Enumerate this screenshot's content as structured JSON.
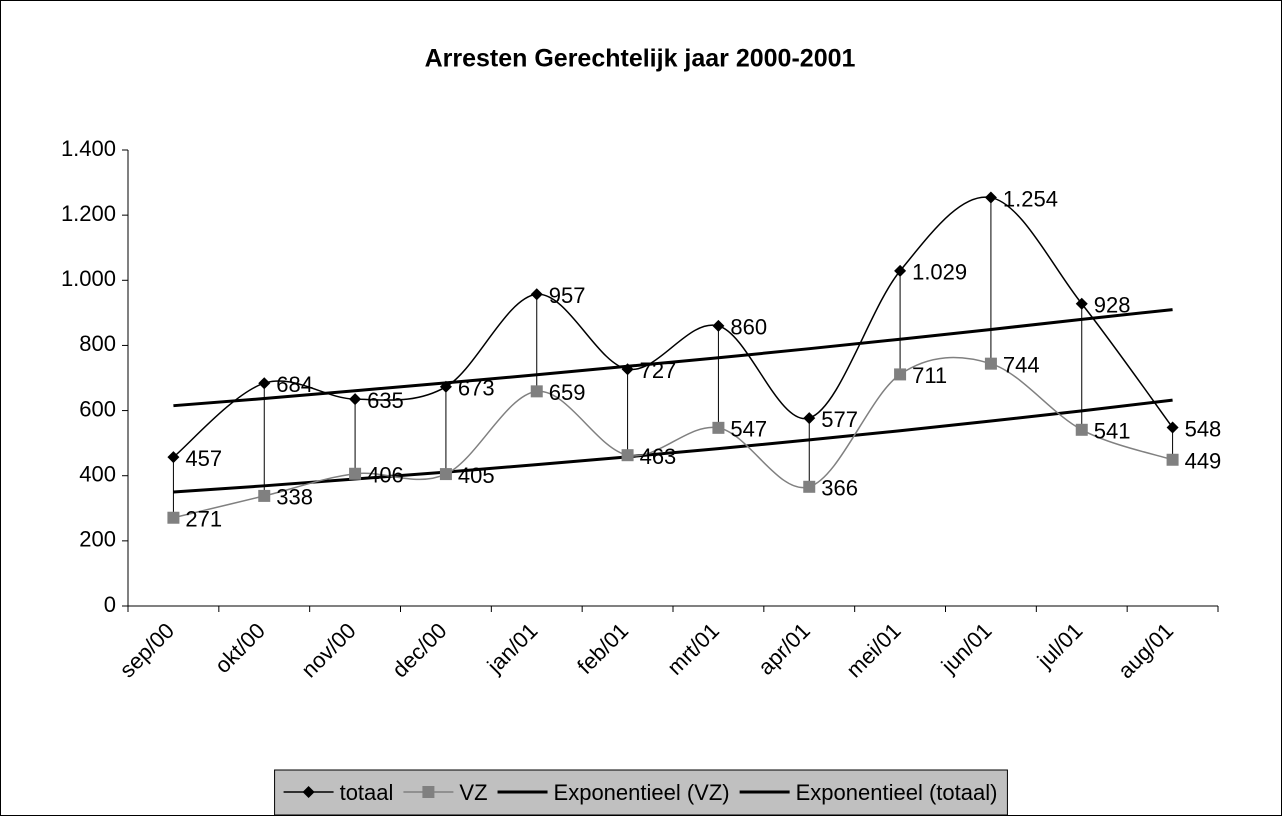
{
  "chart_data": {
    "type": "line",
    "title": "Arresten Gerechtelijk jaar 2000-2001",
    "categories": [
      "sep/00",
      "okt/00",
      "nov/00",
      "dec/00",
      "jan/01",
      "feb/01",
      "mrt/01",
      "apr/01",
      "mei/01",
      "jun/01",
      "jul/01",
      "aug/01"
    ],
    "series": [
      {
        "name": "totaal",
        "color": "#000000",
        "marker": "diamond",
        "smooth": true,
        "values": [
          457,
          684,
          635,
          673,
          957,
          727,
          860,
          577,
          1029,
          1254,
          928,
          548
        ],
        "value_labels": [
          "457",
          "684",
          "635",
          "673",
          "957",
          "727",
          "860",
          "577",
          "1.029",
          "1.254",
          "928",
          "548"
        ]
      },
      {
        "name": "VZ",
        "color": "#808080",
        "marker": "square",
        "smooth": true,
        "values": [
          271,
          338,
          406,
          405,
          659,
          463,
          547,
          366,
          711,
          744,
          541,
          449
        ]
      },
      {
        "name": "Exponentieel (VZ)",
        "color": "#000000",
        "marker": "none",
        "smooth": false,
        "values": [
          350,
          369,
          390,
          411,
          434,
          458,
          483,
          510,
          538,
          568,
          599,
          632
        ]
      },
      {
        "name": "Exponentieel (totaal)",
        "color": "#000000",
        "marker": "none",
        "smooth": false,
        "values": [
          615,
          637,
          661,
          685,
          710,
          736,
          762,
          790,
          819,
          849,
          880,
          910
        ]
      }
    ],
    "ylim": [
      0,
      1400
    ],
    "yticks": [
      0,
      200,
      400,
      600,
      800,
      {
        "value": 1000,
        "label": "1.000"
      },
      {
        "value": 1200,
        "label": "1.200"
      },
      {
        "value": 1400,
        "label": "1.400"
      }
    ],
    "drop_lines": true,
    "legend": "bottom"
  }
}
